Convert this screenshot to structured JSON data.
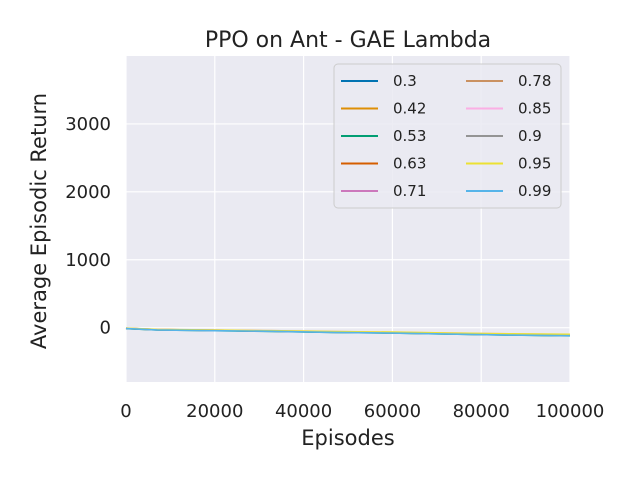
{
  "chart_data": {
    "type": "line",
    "title": "PPO on Ant - GAE Lambda",
    "xlabel": "Episodes",
    "ylabel": "Average Episodic Return",
    "xlim": [
      0,
      100000
    ],
    "ylim": [
      -800,
      4000
    ],
    "xticks": [
      0,
      20000,
      40000,
      60000,
      80000,
      100000
    ],
    "xtick_labels": [
      "0",
      "20000",
      "40000",
      "60000",
      "80000",
      "100000"
    ],
    "yticks": [
      0,
      1000,
      2000,
      3000
    ],
    "ytick_labels": [
      "0",
      "1000",
      "2000",
      "3000"
    ],
    "grid": true,
    "legend_position": "top-right",
    "series": [
      {
        "name": "0.3",
        "color": "#0173b2",
        "x": [
          0,
          7000,
          20000,
          33000,
          47000,
          60000,
          73000,
          87000,
          100000
        ],
        "y": [
          -10,
          -30,
          -40,
          -50,
          -65,
          -75,
          -90,
          -105,
          -115
        ]
      },
      {
        "name": "0.42",
        "color": "#de8f05",
        "x": [
          0,
          7000,
          20000,
          33000,
          47000,
          60000,
          73000,
          87000,
          100000
        ],
        "y": [
          -12,
          -32,
          -42,
          -52,
          -68,
          -78,
          -92,
          -108,
          -118
        ]
      },
      {
        "name": "0.53",
        "color": "#029e73",
        "x": [
          0,
          7000,
          20000,
          33000,
          47000,
          60000,
          73000,
          87000,
          100000
        ],
        "y": [
          -15,
          -35,
          -45,
          -55,
          -70,
          -80,
          -95,
          -110,
          -120
        ]
      },
      {
        "name": "0.63",
        "color": "#d55e00",
        "x": [
          0,
          7000,
          20000,
          33000,
          47000,
          60000,
          73000,
          87000,
          100000
        ],
        "y": [
          -8,
          -28,
          -38,
          -48,
          -62,
          -72,
          -86,
          -100,
          -110
        ]
      },
      {
        "name": "0.71",
        "color": "#cc78bc",
        "x": [
          0,
          7000,
          20000,
          33000,
          47000,
          60000,
          73000,
          87000,
          100000
        ],
        "y": [
          -10,
          -30,
          -41,
          -51,
          -66,
          -76,
          -90,
          -104,
          -114
        ]
      },
      {
        "name": "0.78",
        "color": "#ca9161",
        "x": [
          0,
          7000,
          20000,
          33000,
          47000,
          60000,
          73000,
          87000,
          100000
        ],
        "y": [
          -9,
          -29,
          -39,
          -49,
          -64,
          -74,
          -88,
          -102,
          -112
        ]
      },
      {
        "name": "0.85",
        "color": "#fbafe4",
        "x": [
          0,
          7000,
          20000,
          33000,
          47000,
          60000,
          73000,
          87000,
          100000
        ],
        "y": [
          -7,
          -27,
          -37,
          -45,
          -58,
          -68,
          -80,
          -92,
          -100
        ]
      },
      {
        "name": "0.9",
        "color": "#949494",
        "x": [
          0,
          7000,
          20000,
          33000,
          47000,
          60000,
          73000,
          87000,
          100000
        ],
        "y": [
          -11,
          -31,
          -42,
          -52,
          -66,
          -77,
          -91,
          -106,
          -116
        ]
      },
      {
        "name": "0.95",
        "color": "#ece133",
        "x": [
          0,
          7000,
          20000,
          33000,
          47000,
          60000,
          73000,
          87000,
          100000
        ],
        "y": [
          -6,
          -26,
          -36,
          -44,
          -56,
          -66,
          -78,
          -90,
          -98
        ]
      },
      {
        "name": "0.99",
        "color": "#56b4e9",
        "x": [
          0,
          7000,
          20000,
          33000,
          47000,
          60000,
          73000,
          87000,
          100000
        ],
        "y": [
          -13,
          -33,
          -44,
          -54,
          -69,
          -80,
          -94,
          -109,
          -119
        ]
      }
    ]
  }
}
